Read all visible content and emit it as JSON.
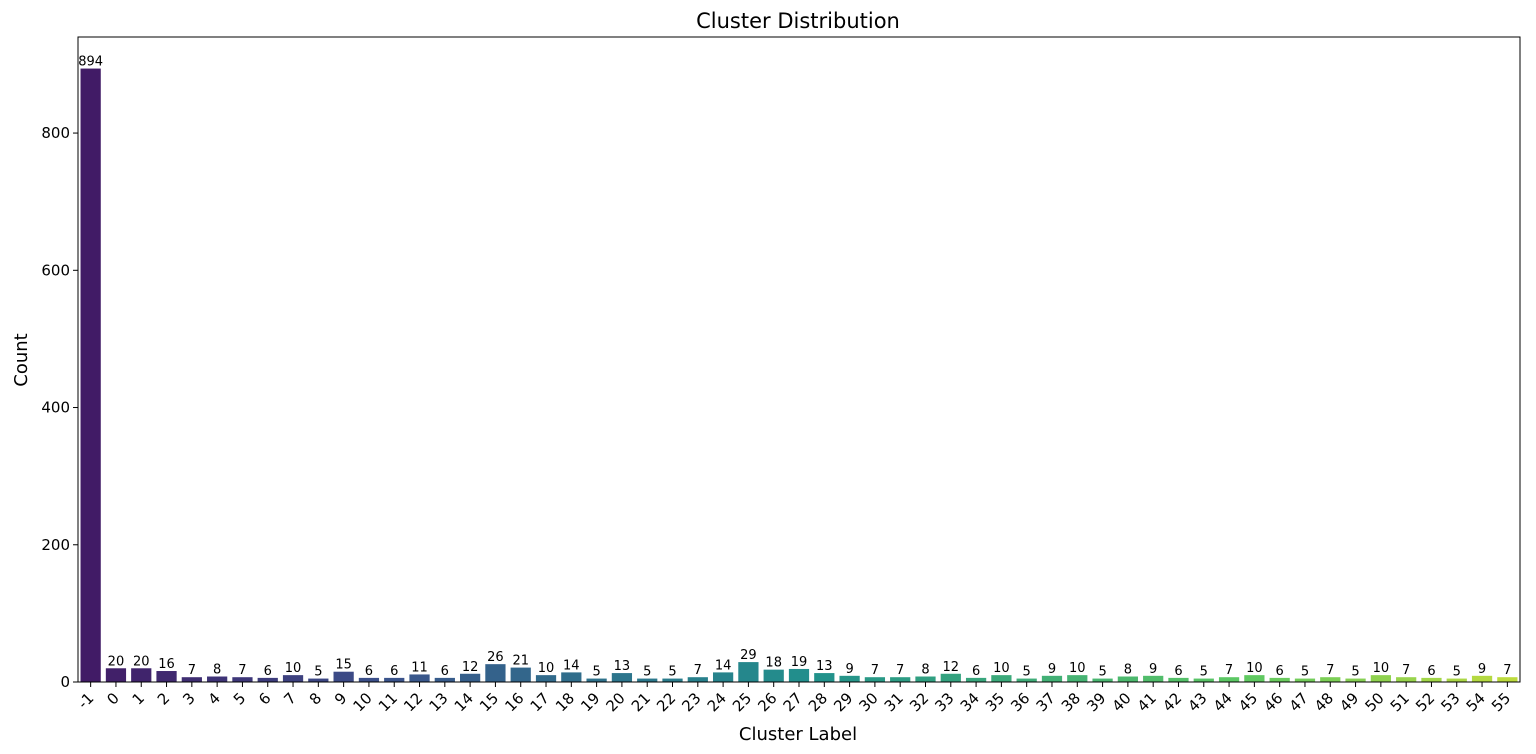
{
  "chart_data": {
    "type": "bar",
    "title": "Cluster Distribution",
    "xlabel": "Cluster Label",
    "ylabel": "Count",
    "ylim": [
      0,
      940
    ],
    "yticks": [
      0,
      200,
      400,
      600,
      800
    ],
    "grid": false,
    "categories": [
      "-1",
      "0",
      "1",
      "2",
      "3",
      "4",
      "5",
      "6",
      "7",
      "8",
      "9",
      "10",
      "11",
      "12",
      "13",
      "14",
      "15",
      "16",
      "17",
      "18",
      "19",
      "20",
      "21",
      "22",
      "23",
      "24",
      "25",
      "26",
      "27",
      "28",
      "29",
      "30",
      "31",
      "32",
      "33",
      "34",
      "35",
      "36",
      "37",
      "38",
      "39",
      "40",
      "41",
      "42",
      "43",
      "44",
      "45",
      "46",
      "47",
      "48",
      "49",
      "50",
      "51",
      "52",
      "53",
      "54",
      "55"
    ],
    "values": [
      894,
      20,
      20,
      16,
      7,
      8,
      7,
      6,
      10,
      5,
      15,
      6,
      6,
      11,
      6,
      12,
      26,
      21,
      10,
      14,
      5,
      13,
      5,
      5,
      7,
      14,
      29,
      18,
      19,
      13,
      9,
      7,
      7,
      8,
      12,
      6,
      10,
      5,
      9,
      10,
      5,
      8,
      9,
      6,
      5,
      7,
      10,
      6,
      5,
      7,
      5,
      10,
      7,
      6,
      5,
      9,
      7
    ],
    "colormap": "viridis"
  }
}
